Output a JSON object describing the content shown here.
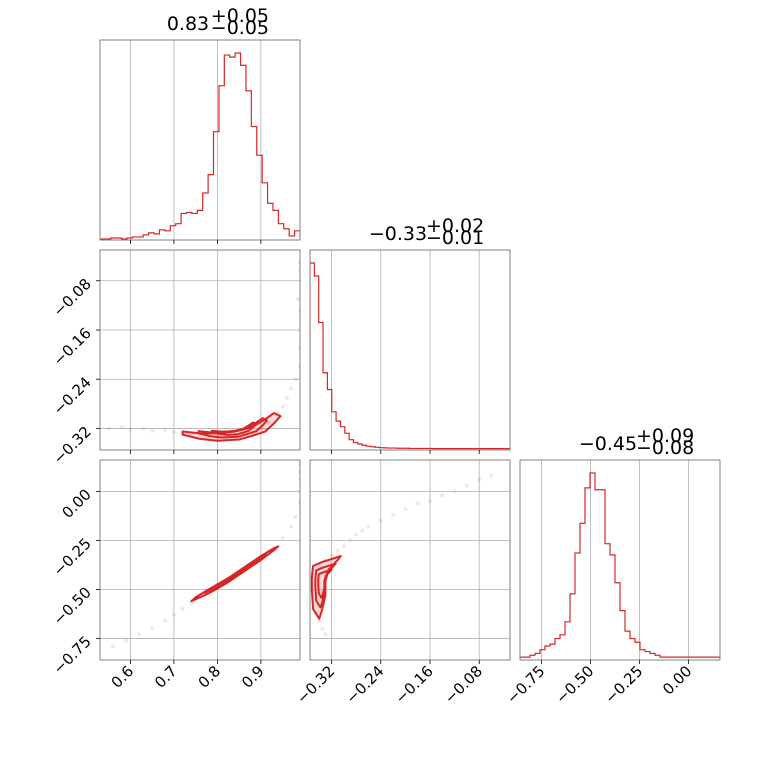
{
  "chart_data": {
    "type": "corner",
    "color": "#d62728",
    "parameters": [
      {
        "id": "p0",
        "title_value": "0.83",
        "title_plus": "+0.05",
        "title_minus": "−0.05",
        "range": [
          0.53,
          0.99
        ],
        "ticks": [
          0.6,
          0.7,
          0.8,
          0.9
        ],
        "tick_labels": [
          "0.6",
          "0.7",
          "0.8",
          "0.9"
        ]
      },
      {
        "id": "p1",
        "title_value": "−0.33",
        "title_plus": "+0.02",
        "title_minus": "−0.01",
        "range": [
          -0.355,
          -0.03
        ],
        "ticks": [
          -0.32,
          -0.24,
          -0.16,
          -0.08
        ],
        "tick_labels": [
          "−0.32",
          "−0.24",
          "−0.16",
          "−0.08"
        ]
      },
      {
        "id": "p2",
        "title_value": "−0.45",
        "title_plus": "+0.09",
        "title_minus": "−0.08",
        "range": [
          -0.86,
          0.16
        ],
        "ticks": [
          -0.75,
          -0.5,
          -0.25,
          0.0
        ],
        "tick_labels": [
          "−0.75",
          "−0.50",
          "−0.25",
          "0.00"
        ]
      }
    ],
    "histograms": [
      {
        "param": "p0",
        "edges": [
          0.53,
          0.99
        ],
        "counts": [
          0,
          0,
          1,
          1,
          0,
          1,
          2,
          2,
          4,
          6,
          5,
          9,
          8,
          13,
          15,
          25,
          26,
          25,
          28,
          45,
          63,
          105,
          150,
          180,
          178,
          182,
          170,
          145,
          110,
          82,
          55,
          35,
          28,
          15,
          10,
          3,
          8
        ]
      },
      {
        "param": "p1",
        "edges": [
          -0.355,
          -0.03
        ],
        "counts": [
          1.0,
          0.93,
          0.68,
          0.41,
          0.32,
          0.2,
          0.15,
          0.12,
          0.085,
          0.05,
          0.035,
          0.027,
          0.02,
          0.015,
          0.012,
          0.009,
          0.007,
          0.006,
          0.005,
          0.005,
          0.004,
          0.004,
          0.004,
          0.003,
          0.003,
          0.003,
          0.003,
          0.003,
          0.002,
          0.002,
          0.002,
          0.002,
          0.002,
          0.002,
          0.002,
          0.002,
          0.002,
          0.002,
          0.002,
          0.002,
          0.002,
          0.002,
          0.002,
          0.002,
          0.002,
          0.002
        ]
      },
      {
        "param": "p2",
        "edges": [
          -0.86,
          0.16
        ],
        "counts": [
          0.01,
          0.01,
          0.02,
          0.03,
          0.05,
          0.07,
          0.08,
          0.11,
          0.13,
          0.2,
          0.35,
          0.57,
          0.73,
          0.92,
          1.0,
          0.91,
          0.91,
          0.62,
          0.56,
          0.41,
          0.26,
          0.15,
          0.11,
          0.09,
          0.05,
          0.04,
          0.03,
          0.02,
          0.01,
          0.01,
          0.01,
          0.01,
          0.01,
          0.01,
          0.01,
          0.01,
          0.01,
          0.01,
          0.01,
          0.01
        ]
      }
    ],
    "scatter_panels": [
      {
        "x": "p0",
        "y": "p1",
        "points": [
          [
            0.55,
            -0.32
          ],
          [
            0.58,
            -0.318
          ],
          [
            0.6,
            -0.322
          ],
          [
            0.63,
            -0.32
          ],
          [
            0.65,
            -0.324
          ],
          [
            0.68,
            -0.322
          ],
          [
            0.7,
            -0.326
          ],
          [
            0.72,
            -0.327
          ],
          [
            0.74,
            -0.33
          ],
          [
            0.76,
            -0.33
          ],
          [
            0.78,
            -0.333
          ],
          [
            0.8,
            -0.335
          ],
          [
            0.82,
            -0.334
          ],
          [
            0.84,
            -0.333
          ],
          [
            0.86,
            -0.33
          ],
          [
            0.88,
            -0.327
          ],
          [
            0.9,
            -0.32
          ],
          [
            0.92,
            -0.31
          ],
          [
            0.94,
            -0.295
          ],
          [
            0.95,
            -0.285
          ],
          [
            0.96,
            -0.27
          ],
          [
            0.97,
            -0.255
          ],
          [
            0.98,
            -0.24
          ],
          [
            0.99,
            -0.22
          ],
          [
            0.99,
            -0.19
          ],
          [
            0.99,
            -0.16
          ],
          [
            0.99,
            -0.13
          ],
          [
            0.985,
            -0.11
          ],
          [
            0.99,
            -0.065
          ],
          [
            0.99,
            -0.05
          ]
        ],
        "contour": [
          [
            0.72,
            -0.33
          ],
          [
            0.76,
            -0.337
          ],
          [
            0.8,
            -0.34
          ],
          [
            0.85,
            -0.338
          ],
          [
            0.88,
            -0.332
          ],
          [
            0.91,
            -0.325
          ],
          [
            0.93,
            -0.312
          ],
          [
            0.945,
            -0.3
          ],
          [
            0.93,
            -0.295
          ],
          [
            0.91,
            -0.305
          ],
          [
            0.88,
            -0.318
          ],
          [
            0.84,
            -0.325
          ],
          [
            0.8,
            -0.328
          ],
          [
            0.76,
            -0.328
          ],
          [
            0.72,
            -0.325
          ]
        ]
      },
      {
        "x": "p0",
        "y": "p2",
        "points": [
          [
            0.56,
            -0.79
          ],
          [
            0.59,
            -0.76
          ],
          [
            0.62,
            -0.73
          ],
          [
            0.65,
            -0.7
          ],
          [
            0.68,
            -0.66
          ],
          [
            0.7,
            -0.63
          ],
          [
            0.72,
            -0.6
          ],
          [
            0.74,
            -0.57
          ],
          [
            0.77,
            -0.53
          ],
          [
            0.8,
            -0.49
          ],
          [
            0.83,
            -0.44
          ],
          [
            0.86,
            -0.4
          ],
          [
            0.89,
            -0.35
          ],
          [
            0.92,
            -0.3
          ],
          [
            0.95,
            -0.24
          ],
          [
            0.97,
            -0.18
          ],
          [
            0.98,
            -0.13
          ],
          [
            0.99,
            -0.06
          ],
          [
            0.99,
            0.0
          ],
          [
            0.99,
            0.06
          ],
          [
            0.99,
            0.1
          ],
          [
            0.99,
            0.14
          ]
        ],
        "contour": [
          [
            0.74,
            -0.56
          ],
          [
            0.78,
            -0.52
          ],
          [
            0.82,
            -0.47
          ],
          [
            0.86,
            -0.41
          ],
          [
            0.9,
            -0.35
          ],
          [
            0.93,
            -0.3
          ],
          [
            0.94,
            -0.28
          ],
          [
            0.93,
            -0.29
          ],
          [
            0.9,
            -0.33
          ],
          [
            0.86,
            -0.39
          ],
          [
            0.82,
            -0.45
          ],
          [
            0.78,
            -0.5
          ],
          [
            0.75,
            -0.54
          ]
        ]
      },
      {
        "x": "p1",
        "y": "p2",
        "points": [
          [
            -0.345,
            -0.62
          ],
          [
            -0.34,
            -0.66
          ],
          [
            -0.335,
            -0.7
          ],
          [
            -0.33,
            -0.73
          ],
          [
            -0.34,
            -0.52
          ],
          [
            -0.345,
            -0.45
          ],
          [
            -0.34,
            -0.38
          ],
          [
            -0.33,
            -0.35
          ],
          [
            -0.32,
            -0.33
          ],
          [
            -0.31,
            -0.3
          ],
          [
            -0.3,
            -0.28
          ],
          [
            -0.29,
            -0.25
          ],
          [
            -0.28,
            -0.22
          ],
          [
            -0.27,
            -0.2
          ],
          [
            -0.26,
            -0.18
          ],
          [
            -0.24,
            -0.15
          ],
          [
            -0.22,
            -0.12
          ],
          [
            -0.2,
            -0.09
          ],
          [
            -0.18,
            -0.06
          ],
          [
            -0.16,
            -0.05
          ],
          [
            -0.14,
            -0.02
          ],
          [
            -0.12,
            0.0
          ],
          [
            -0.1,
            0.03
          ],
          [
            -0.08,
            0.06
          ],
          [
            -0.06,
            0.08
          ]
        ],
        "contour": [
          [
            -0.35,
            -0.38
          ],
          [
            -0.335,
            -0.36
          ],
          [
            -0.315,
            -0.34
          ],
          [
            -0.305,
            -0.33
          ],
          [
            -0.31,
            -0.35
          ],
          [
            -0.325,
            -0.4
          ],
          [
            -0.33,
            -0.46
          ],
          [
            -0.33,
            -0.53
          ],
          [
            -0.335,
            -0.6
          ],
          [
            -0.34,
            -0.65
          ],
          [
            -0.35,
            -0.6
          ],
          [
            -0.352,
            -0.5
          ],
          [
            -0.352,
            -0.44
          ]
        ]
      }
    ]
  }
}
